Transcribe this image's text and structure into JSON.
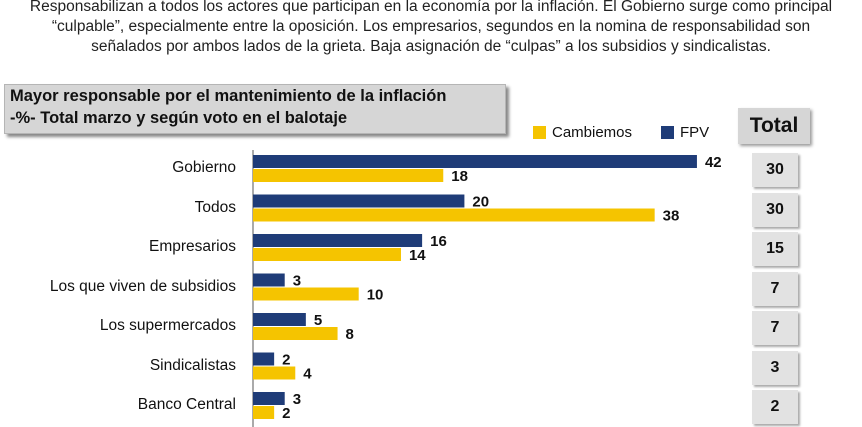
{
  "intro_text": "Responsabilizan a todos los actores que participan en la economía por la inflación. El Gobierno surge como principal “culpable”, especialmente entre la oposición. Los empresarios, segundos en la nomina de responsabilidad son señalados por ambos lados de la grieta. Baja asignación de “culpas” a los subsidios y sindicalistas.",
  "total_header": "Total",
  "colors": {
    "cambiemos": "#f5c400",
    "fpv": "#1f3c78",
    "panel": "#d6d6d6"
  },
  "chart_data": {
    "type": "bar",
    "orientation": "horizontal",
    "title": "Mayor responsable por el mantenimiento de la inflación",
    "subtitle": "-%- Total marzo y según voto en el balotaje",
    "categories": [
      "Gobierno",
      "Todos",
      "Empresarios",
      "Los que viven de subsidios",
      "Los supermercados",
      "Sindicalistas",
      "Banco Central"
    ],
    "series": [
      {
        "name": "FPV",
        "values": [
          42,
          20,
          16,
          3,
          5,
          2,
          3
        ]
      },
      {
        "name": "Cambiemos",
        "values": [
          18,
          38,
          14,
          10,
          8,
          4,
          2
        ]
      }
    ],
    "totals": [
      30,
      30,
      15,
      7,
      7,
      3,
      2
    ],
    "legend_position": "top-right",
    "xlim": [
      0,
      45
    ],
    "grid": false
  }
}
